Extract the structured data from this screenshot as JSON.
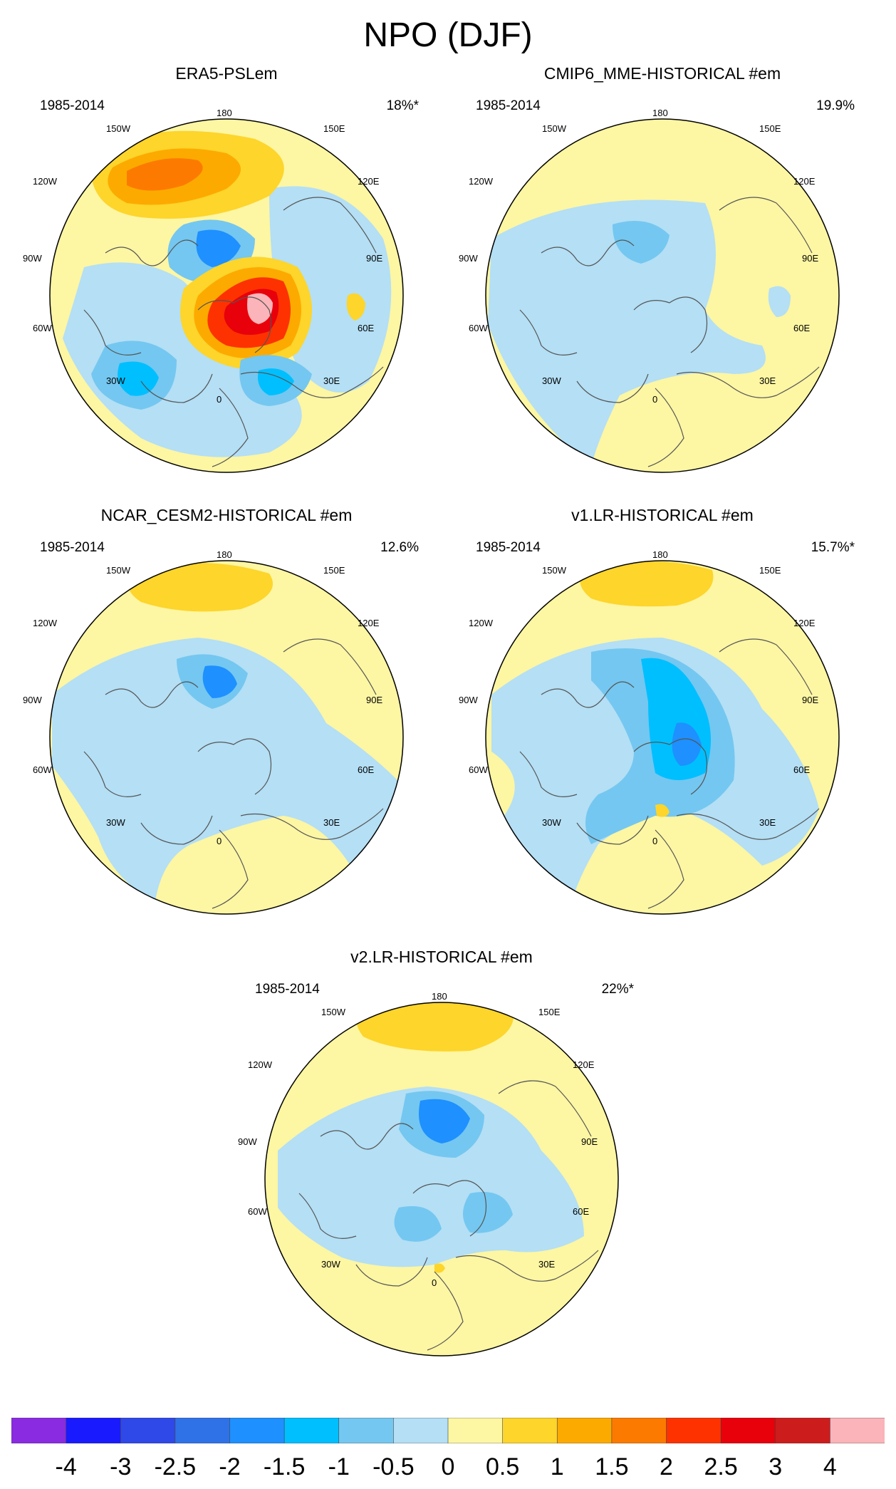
{
  "title": "NPO (DJF)",
  "lon_labels": {
    "top": "180",
    "ul": "150W",
    "ur": "150E",
    "l1": "120W",
    "r1": "120E",
    "l2": "90W",
    "r2": "90E",
    "l3": "60W",
    "r3": "60E",
    "ll": "30W",
    "lr": "30E",
    "bottom": "0"
  },
  "panels": [
    {
      "id": "era5",
      "title": "ERA5-PSLem",
      "period": "1985-2014",
      "explained_variance": "18%*"
    },
    {
      "id": "cmip6",
      "title": "CMIP6_MME-HISTORICAL  #em",
      "period": "1985-2014",
      "explained_variance": "19.9%"
    },
    {
      "id": "cesm2",
      "title": "NCAR_CESM2-HISTORICAL  #em",
      "period": "1985-2014",
      "explained_variance": "12.6%"
    },
    {
      "id": "v1lr",
      "title": "v1.LR-HISTORICAL  #em",
      "period": "1985-2014",
      "explained_variance": "15.7%*"
    },
    {
      "id": "v2lr",
      "title": "v2.LR-HISTORICAL  #em",
      "period": "1985-2014",
      "explained_variance": "22%*"
    }
  ],
  "colorbar": {
    "labels": [
      "-4",
      "-3",
      "-2.5",
      "-2",
      "-1.5",
      "-1",
      "-0.5",
      "0",
      "0.5",
      "1",
      "1.5",
      "2",
      "2.5",
      "3",
      "4"
    ],
    "colors": [
      "#8a2be2",
      "#1a1aff",
      "#2f48e8",
      "#2f72e8",
      "#1e90ff",
      "#00bfff",
      "#74c7f0",
      "#b4dff5",
      "#fdf6a3",
      "#fdd52b",
      "#fdaa00",
      "#fd7a00",
      "#fd3200",
      "#e8000b",
      "#cc1c1c",
      "#fbb4b9"
    ]
  },
  "colors": {
    "neg_light": "#b4dff5",
    "neg_mid": "#74c7f0",
    "neg_deep": "#00bfff",
    "neg_strong": "#1e90ff",
    "neg_core": "#2f48e8",
    "pos_light": "#fdf6a3",
    "pos_mid": "#fdd52b",
    "pos_orange": "#fdaa00",
    "pos_strong": "#fd7a00",
    "pos_red": "#fd3200",
    "pos_dred": "#e8000b",
    "pos_max": "#fbb4b9"
  }
}
